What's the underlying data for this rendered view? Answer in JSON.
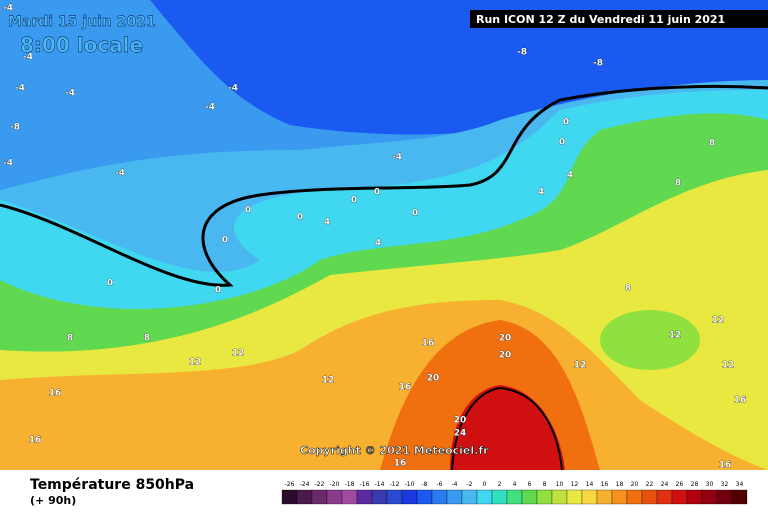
{
  "header": {
    "date": "Mardi 15 juin 2021",
    "time": "8:00 locale",
    "run": "Run ICON 12 Z du Vendredi 11 juin 2021"
  },
  "copyright": "Copyright © 2021 Meteociel.fr",
  "footer": {
    "title": "Température 850hPa",
    "subtitle": "(+ 90h)"
  },
  "scale": {
    "ticks": [
      -26,
      -24,
      -22,
      -20,
      -18,
      -16,
      -14,
      -12,
      -10,
      -8,
      -6,
      -4,
      -2,
      0,
      2,
      4,
      6,
      8,
      10,
      12,
      14,
      16,
      18,
      20,
      22,
      24,
      26,
      28,
      30,
      32,
      34
    ],
    "colors": [
      "#2b0b2b",
      "#4b1a4b",
      "#6a2a6a",
      "#8a3a8a",
      "#a04aa0",
      "#5a2aa0",
      "#3a3ab0",
      "#2a4ad0",
      "#1a3ae0",
      "#1a5af0",
      "#2a7af0",
      "#3a9af0",
      "#4ab8f0",
      "#40d8f0",
      "#30e0c0",
      "#40e080",
      "#60d850",
      "#90e040",
      "#c0e040",
      "#e8e840",
      "#f8d840",
      "#f8b030",
      "#f89020",
      "#f07010",
      "#e85010",
      "#e03010",
      "#d01010",
      "#b00010",
      "#900010",
      "#700010",
      "#500000"
    ]
  },
  "contour_labels": [
    -4,
    -4,
    -8,
    -8,
    -4,
    -4,
    -4,
    -4,
    -8,
    -4,
    -4,
    -4,
    0,
    0,
    4,
    4,
    0,
    0,
    0,
    0,
    4,
    0,
    4,
    0,
    0,
    8,
    8,
    8,
    8,
    12,
    12,
    12,
    16,
    20,
    20,
    20,
    16,
    16,
    16,
    20,
    24,
    16,
    12,
    12,
    12,
    16,
    16,
    8,
    12,
    0
  ]
}
